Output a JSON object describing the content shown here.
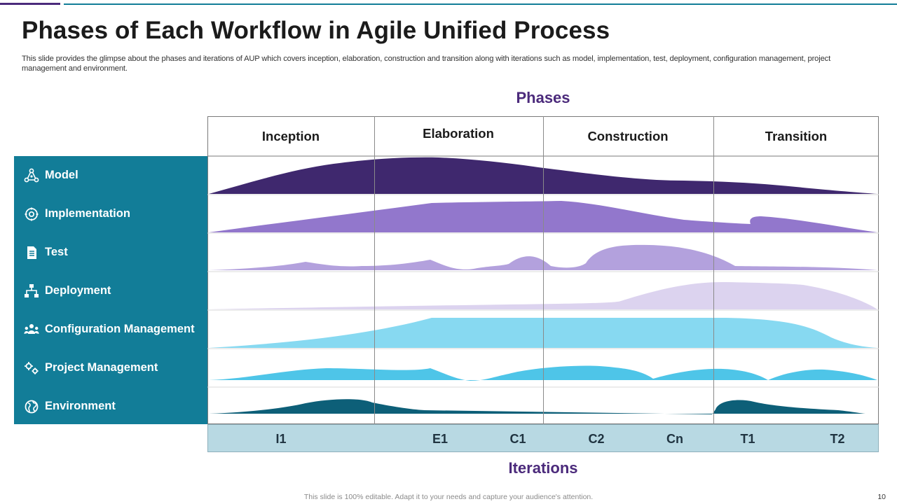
{
  "title": "Phases of Each Workflow in Agile Unified Process",
  "subtitle": "This slide provides the glimpse about the phases and iterations of AUP which covers inception, elaboration, construction and transition along with iterations such as model, implementation, test, deployment, configuration management, project management and environment.",
  "phases_heading": "Phases",
  "iterations_heading": "Iterations",
  "phases": [
    "Inception",
    "Elaboration",
    "Construction",
    "Transition"
  ],
  "workflows": [
    {
      "label": "Model",
      "icon": "model-icon",
      "color": "#3f286e"
    },
    {
      "label": "Implementation",
      "icon": "implementation-icon",
      "color": "#9277cc"
    },
    {
      "label": "Test",
      "icon": "test-icon",
      "color": "#b3a1dd"
    },
    {
      "label": "Deployment",
      "icon": "deployment-icon",
      "color": "#dcd3ef"
    },
    {
      "label": "Configuration Management",
      "icon": "configuration-management-icon",
      "color": "#87d9f1"
    },
    {
      "label": "Project Management",
      "icon": "project-management-icon",
      "color": "#4ec5e8"
    },
    {
      "label": "Environment",
      "icon": "environment-icon",
      "color": "#0d5f78"
    }
  ],
  "iterations": [
    "I1",
    "E1",
    "C1",
    "C2",
    "Cn",
    "T1",
    "T2"
  ],
  "footer_note": "This slide is 100% editable. Adapt it to your needs and capture your audience's attention.",
  "page_number": "10",
  "colors": {
    "accent_purple": "#4b2a7b",
    "sidebar_teal": "#127d98",
    "iteration_bar": "#b8d9e3"
  }
}
